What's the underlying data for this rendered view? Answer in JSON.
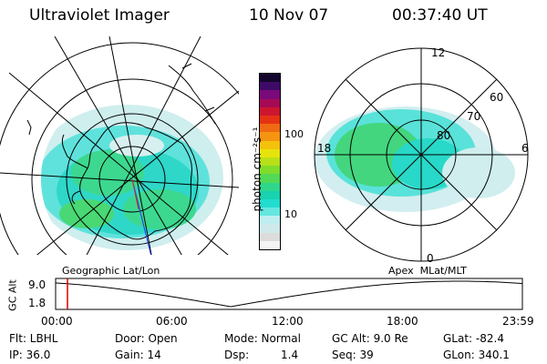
{
  "header": {
    "instrument": "Ultraviolet Imager",
    "date": "10 Nov 07",
    "time": "00:37:40 UT"
  },
  "maps": {
    "geographic_label": "Geographic Lat/Lon",
    "apex_label": "Apex  MLat/MLT",
    "apex_mlt_labels": [
      "12",
      "18",
      "6",
      "0"
    ],
    "apex_lat_labels": [
      "60",
      "70",
      "80"
    ]
  },
  "colorbar": {
    "unit_label": "photon cm⁻²s⁻¹",
    "tick_labels": [
      "100",
      "10"
    ],
    "colors": [
      "#f4f4f4",
      "#dcdcdc",
      "#cfe8ea",
      "#bfeef0",
      "#66e6e0",
      "#22dcd0",
      "#18d2b0",
      "#2fd78c",
      "#52d955",
      "#7fdc2b",
      "#b8e018",
      "#e7e30c",
      "#f4c20c",
      "#f59410",
      "#ef6a12",
      "#e63214",
      "#cc1630",
      "#a60a55",
      "#7a0a7a",
      "#3e0a68",
      "#14052e"
    ]
  },
  "timeline": {
    "y_axis_label": "GC Alt",
    "y_ticks": [
      "9.0",
      "1.8"
    ],
    "x_ticks": [
      "00:00",
      "06:00",
      "12:00",
      "18:00",
      "23:59"
    ],
    "line_color": "#000000",
    "marker_color": "#dd0000"
  },
  "status": {
    "flt": "Flt: LBHL",
    "ip": "IP: 36.0",
    "door": "Door: Open",
    "gain": "Gain: 14",
    "mode": "Mode: Normal",
    "dsp_label": "Dsp:",
    "dsp_value": "1.4",
    "gc_alt": "GC Alt: 9.0 Re",
    "seq": "Seq: 39",
    "glat": "GLat: -82.4",
    "glon": "GLon: 340.1"
  }
}
